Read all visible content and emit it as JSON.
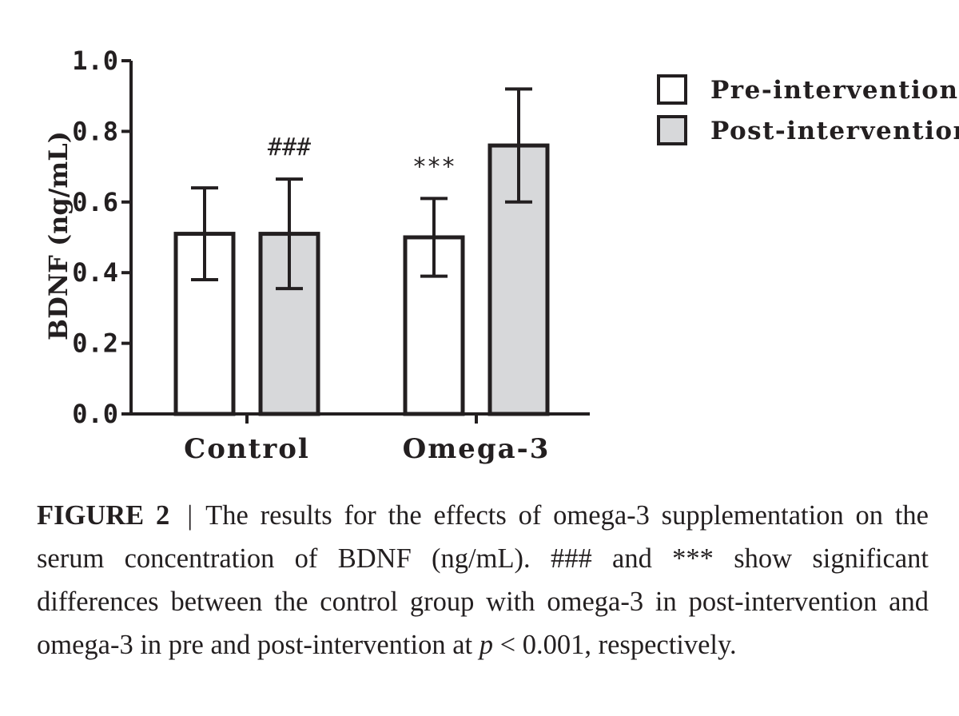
{
  "chart_data": {
    "type": "bar",
    "title": "",
    "xlabel": "",
    "ylabel": "BDNF (ng/mL)",
    "ylim": [
      0,
      1.0
    ],
    "yticks": [
      "0.0",
      "0.2",
      "0.4",
      "0.6",
      "0.8",
      "1.0"
    ],
    "categories": [
      "Control",
      "Omega-3"
    ],
    "legend_position": "top-right",
    "grid": false,
    "series": [
      {
        "name": "Pre-intervention",
        "color": "#ffffff",
        "values": [
          0.51,
          0.5
        ],
        "errors": [
          0.13,
          0.11
        ]
      },
      {
        "name": "Post-intervention",
        "color": "#d7d8da",
        "values": [
          0.51,
          0.76
        ],
        "errors": [
          0.155,
          0.16
        ]
      }
    ],
    "annotations": [
      {
        "text": "###",
        "category": "Control",
        "series": "Post-intervention"
      },
      {
        "text": "***",
        "category": "Omega-3",
        "series": "Pre-intervention"
      }
    ]
  },
  "caption": {
    "label": "FIGURE 2",
    "separator": "|",
    "text_before_p": "The results for the effects of omega-3 supplementation on the serum concentration of BDNF (ng/mL). ### and *** show significant differences between the control group with omega-3 in post-intervention and omega-3 in pre and post-intervention at ",
    "p_symbol": "p",
    "text_after_p": " < 0.001, respectively."
  }
}
